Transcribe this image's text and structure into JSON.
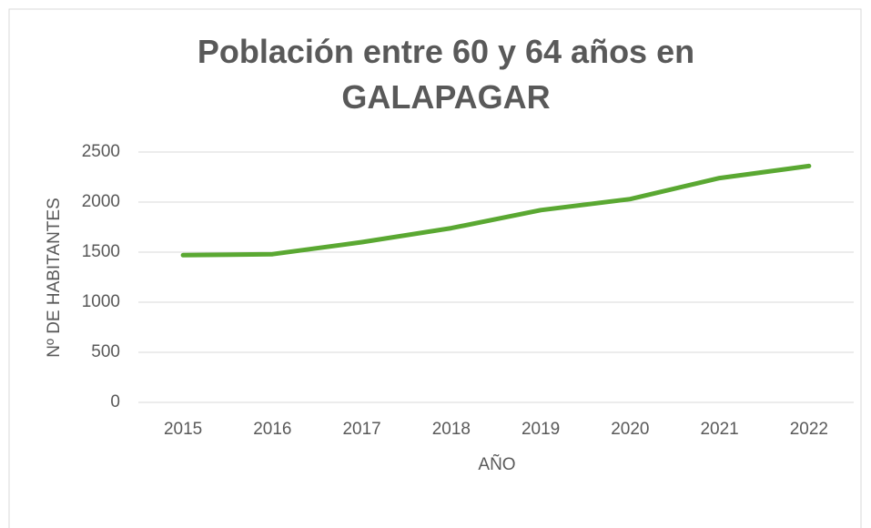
{
  "chart_data": {
    "type": "line",
    "title": "Población entre 60 y 64 años en GALAPAGAR",
    "x_label": "AÑO",
    "y_label": "Nº DE HABITANTES",
    "categories": [
      "2015",
      "2016",
      "2017",
      "2018",
      "2019",
      "2020",
      "2021",
      "2022"
    ],
    "series": [
      {
        "name": "Población",
        "color": "#5aa832",
        "values": [
          1470,
          1480,
          1600,
          1740,
          1920,
          2030,
          2240,
          2360
        ]
      }
    ],
    "ylim": [
      0,
      2500
    ],
    "yticks": [
      0,
      500,
      1000,
      1500,
      2000,
      2500
    ],
    "grid": true
  }
}
